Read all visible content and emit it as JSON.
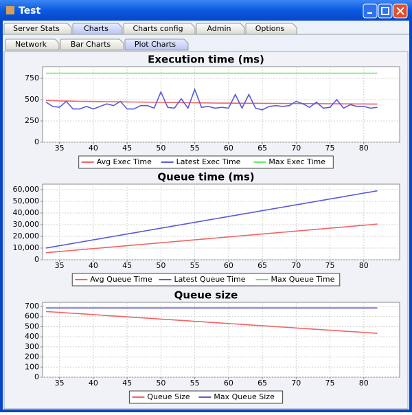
{
  "window": {
    "title": "Test"
  },
  "tabs": [
    "Server Stats",
    "Charts",
    "Charts config",
    "Admin",
    "Options"
  ],
  "subtabs": [
    "Network",
    "Bar Charts",
    "Plot Charts"
  ],
  "chart_data": [
    {
      "type": "line",
      "title": "Execution time (ms)",
      "x": [
        33,
        34,
        35,
        36,
        37,
        38,
        39,
        40,
        41,
        42,
        43,
        44,
        45,
        46,
        47,
        48,
        49,
        50,
        51,
        52,
        53,
        54,
        55,
        56,
        57,
        58,
        59,
        60,
        61,
        62,
        63,
        64,
        65,
        66,
        67,
        68,
        69,
        70,
        71,
        72,
        73,
        74,
        75,
        76,
        77,
        78,
        79,
        80,
        81,
        82
      ],
      "xlim": [
        32.5,
        85.3
      ],
      "xticks": [
        35,
        40,
        45,
        50,
        55,
        60,
        65,
        70,
        75,
        80
      ],
      "ylim": [
        0,
        887
      ],
      "yticks": [
        0,
        250,
        500,
        750
      ],
      "grid": true,
      "series": [
        {
          "name": "Avg Exec Time",
          "color": "#f06464",
          "values": [
            490,
            488,
            485,
            483,
            482,
            480,
            479,
            478,
            477,
            476,
            475,
            474,
            473,
            472,
            471,
            470,
            469,
            468,
            467,
            466,
            465,
            464,
            463,
            462,
            461,
            460,
            459,
            459,
            458,
            458,
            457,
            457,
            456,
            456,
            455,
            455,
            454,
            454,
            453,
            453,
            452,
            452,
            451,
            451,
            450,
            450,
            449,
            449,
            448,
            448
          ]
        },
        {
          "name": "Latest Exec Time",
          "color": "#5a5ad8",
          "values": [
            470,
            420,
            410,
            480,
            390,
            390,
            420,
            390,
            420,
            450,
            430,
            480,
            390,
            390,
            430,
            430,
            400,
            590,
            410,
            400,
            510,
            400,
            620,
            410,
            420,
            400,
            410,
            400,
            560,
            400,
            560,
            400,
            380,
            420,
            430,
            420,
            430,
            480,
            450,
            410,
            470,
            400,
            410,
            500,
            400,
            440,
            420,
            420,
            400,
            410
          ]
        },
        {
          "name": "Max Exec Time",
          "color": "#64ec64",
          "values": [
            810,
            810,
            810,
            810,
            810,
            810,
            810,
            810,
            810,
            810,
            810,
            810,
            810,
            810,
            810,
            810,
            810,
            810,
            810,
            810,
            810,
            810,
            810,
            810,
            810,
            810,
            810,
            810,
            810,
            810,
            810,
            810,
            810,
            810,
            810,
            810,
            810,
            810,
            810,
            810,
            810,
            810,
            810,
            810,
            810,
            810,
            810,
            810,
            810,
            810
          ]
        }
      ]
    },
    {
      "type": "line",
      "title": "Queue time (ms)",
      "x": [
        33,
        34,
        35,
        36,
        37,
        38,
        39,
        40,
        41,
        42,
        43,
        44,
        45,
        46,
        47,
        48,
        49,
        50,
        51,
        52,
        53,
        54,
        55,
        56,
        57,
        58,
        59,
        60,
        61,
        62,
        63,
        64,
        65,
        66,
        67,
        68,
        69,
        70,
        71,
        72,
        73,
        74,
        75,
        76,
        77,
        78,
        79,
        80,
        81,
        82
      ],
      "xlim": [
        32.5,
        85.3
      ],
      "xticks": [
        35,
        40,
        45,
        50,
        55,
        60,
        65,
        70,
        75,
        80
      ],
      "ylim": [
        0,
        64700
      ],
      "yticks": [
        0,
        {
          "value": 10000,
          "label": "10,000"
        },
        {
          "value": 20000,
          "label": "20,000"
        },
        {
          "value": 30000,
          "label": "30,000"
        },
        {
          "value": 40000,
          "label": "40,000"
        },
        {
          "value": 50000,
          "label": "50,000"
        },
        {
          "value": 60000,
          "label": "60,000"
        }
      ],
      "grid": true,
      "series": [
        {
          "name": "Avg Queue Time",
          "color": "#f06464",
          "values": [
            6000,
            6500,
            7000,
            7500,
            8000,
            8500,
            9000,
            9500,
            10000,
            10500,
            11000,
            11500,
            12000,
            12500,
            13000,
            13500,
            14000,
            14500,
            15000,
            15500,
            16000,
            16500,
            17000,
            17500,
            18000,
            18500,
            19000,
            19500,
            20000,
            20500,
            21000,
            21500,
            22000,
            22500,
            23000,
            23500,
            24000,
            24500,
            25000,
            25500,
            26000,
            26500,
            27000,
            27500,
            28000,
            28500,
            29000,
            29500,
            30000,
            30500
          ]
        },
        {
          "name": "Latest Queue Time",
          "color": "#5a5ad8",
          "values": [
            10000,
            11000,
            12000,
            13000,
            14000,
            15000,
            16000,
            17000,
            18000,
            19000,
            20000,
            21000,
            22000,
            23000,
            24000,
            25000,
            26000,
            27000,
            28000,
            29000,
            30000,
            31000,
            32000,
            33000,
            34000,
            35000,
            36000,
            37000,
            38000,
            39000,
            40000,
            41000,
            42000,
            43000,
            44000,
            45000,
            46000,
            47000,
            48000,
            49000,
            50000,
            51000,
            52000,
            53000,
            54000,
            55000,
            56000,
            57000,
            58000,
            59000
          ]
        },
        {
          "name": "Max Queue Time",
          "color": "#64ec64",
          "values": [
            null,
            null,
            null,
            null,
            null,
            null,
            null,
            null,
            null,
            null,
            null,
            null,
            null,
            null,
            null,
            null,
            null,
            null,
            null,
            null,
            null,
            null,
            null,
            null,
            null,
            null,
            null,
            null,
            null,
            null,
            null,
            null,
            null,
            null,
            null,
            null,
            null,
            null,
            null,
            null,
            null,
            null,
            null,
            null,
            null,
            null,
            null,
            null,
            null,
            null
          ]
        }
      ]
    },
    {
      "type": "line",
      "title": "Queue size",
      "x": [
        33,
        34,
        35,
        36,
        37,
        38,
        39,
        40,
        41,
        42,
        43,
        44,
        45,
        46,
        47,
        48,
        49,
        50,
        51,
        52,
        53,
        54,
        55,
        56,
        57,
        58,
        59,
        60,
        61,
        62,
        63,
        64,
        65,
        66,
        67,
        68,
        69,
        70,
        71,
        72,
        73,
        74,
        75,
        76,
        77,
        78,
        79,
        80,
        81,
        82
      ],
      "xlim": [
        32.5,
        85.3
      ],
      "xticks": [
        35,
        40,
        45,
        50,
        55,
        60,
        65,
        70,
        75,
        80
      ],
      "ylim": [
        0,
        741
      ],
      "yticks": [
        0,
        100,
        200,
        300,
        400,
        500,
        600,
        700
      ],
      "grid": true,
      "series": [
        {
          "name": "Queue Size",
          "color": "#f06464",
          "values": [
            650,
            646,
            641,
            637,
            632,
            628,
            624,
            619,
            615,
            610,
            606,
            602,
            597,
            593,
            588,
            584,
            580,
            575,
            571,
            566,
            562,
            558,
            553,
            549,
            544,
            540,
            536,
            531,
            527,
            522,
            518,
            514,
            509,
            505,
            500,
            496,
            492,
            487,
            483,
            478,
            474,
            470,
            465,
            461,
            456,
            452,
            448,
            443,
            439,
            434
          ]
        },
        {
          "name": "Max Queue Size",
          "color": "#5a5ad8",
          "values": [
            685,
            685,
            685,
            685,
            685,
            685,
            685,
            685,
            685,
            685,
            685,
            685,
            685,
            685,
            685,
            685,
            685,
            685,
            685,
            685,
            685,
            685,
            685,
            685,
            685,
            685,
            685,
            685,
            685,
            685,
            685,
            685,
            685,
            685,
            685,
            685,
            685,
            685,
            685,
            685,
            685,
            685,
            685,
            685,
            685,
            685,
            685,
            685,
            685,
            685
          ]
        }
      ]
    }
  ]
}
